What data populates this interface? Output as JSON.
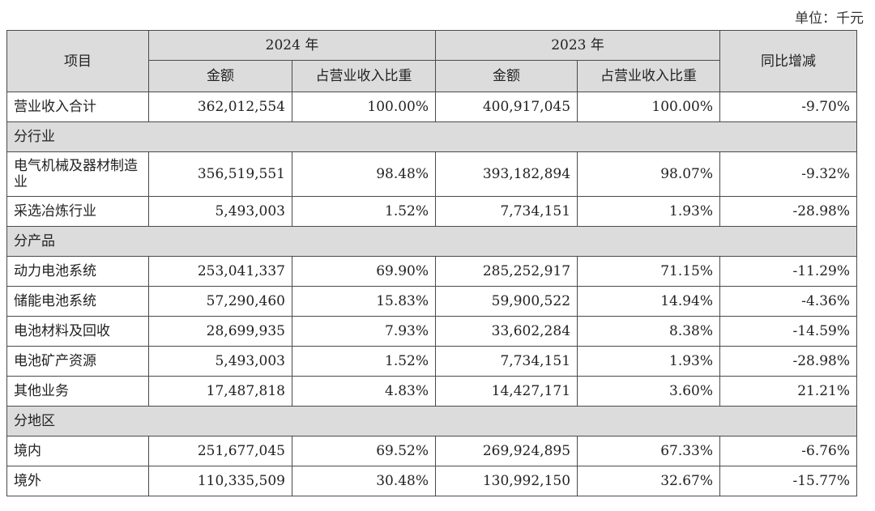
{
  "unit_label": "单位：千元",
  "header": {
    "item": "项目",
    "year_2024": "2024 年",
    "year_2023": "2023 年",
    "yoy": "同比增减",
    "amount_2024": "金额",
    "share_2024": "占营业收入比重",
    "amount_2023": "金额",
    "share_2023": "占营业收入比重"
  },
  "total": {
    "label": "营业收入合计",
    "amount_2024": "362,012,554",
    "share_2024": "100.00%",
    "amount_2023": "400,917,045",
    "share_2023": "100.00%",
    "yoy": "-9.70%"
  },
  "sections": [
    {
      "title": "分行业",
      "rows": [
        {
          "label": "电气机械及器材制造业",
          "amount_2024": "356,519,551",
          "share_2024": "98.48%",
          "amount_2023": "393,182,894",
          "share_2023": "98.07%",
          "yoy": "-9.32%"
        },
        {
          "label": "采选冶炼行业",
          "amount_2024": "5,493,003",
          "share_2024": "1.52%",
          "amount_2023": "7,734,151",
          "share_2023": "1.93%",
          "yoy": "-28.98%"
        }
      ]
    },
    {
      "title": "分产品",
      "rows": [
        {
          "label": "动力电池系统",
          "amount_2024": "253,041,337",
          "share_2024": "69.90%",
          "amount_2023": "285,252,917",
          "share_2023": "71.15%",
          "yoy": "-11.29%"
        },
        {
          "label": "储能电池系统",
          "amount_2024": "57,290,460",
          "share_2024": "15.83%",
          "amount_2023": "59,900,522",
          "share_2023": "14.94%",
          "yoy": "-4.36%"
        },
        {
          "label": "电池材料及回收",
          "amount_2024": "28,699,935",
          "share_2024": "7.93%",
          "amount_2023": "33,602,284",
          "share_2023": "8.38%",
          "yoy": "-14.59%"
        },
        {
          "label": "电池矿产资源",
          "amount_2024": "5,493,003",
          "share_2024": "1.52%",
          "amount_2023": "7,734,151",
          "share_2023": "1.93%",
          "yoy": "-28.98%"
        },
        {
          "label": "其他业务",
          "amount_2024": "17,487,818",
          "share_2024": "4.83%",
          "amount_2023": "14,427,171",
          "share_2023": "3.60%",
          "yoy": "21.21%"
        }
      ]
    },
    {
      "title": "分地区",
      "rows": [
        {
          "label": "境内",
          "amount_2024": "251,677,045",
          "share_2024": "69.52%",
          "amount_2023": "269,924,895",
          "share_2023": "67.33%",
          "yoy": "-6.76%"
        },
        {
          "label": "境外",
          "amount_2024": "110,335,509",
          "share_2024": "30.48%",
          "amount_2023": "130,992,150",
          "share_2023": "32.67%",
          "yoy": "-15.77%"
        }
      ]
    }
  ]
}
